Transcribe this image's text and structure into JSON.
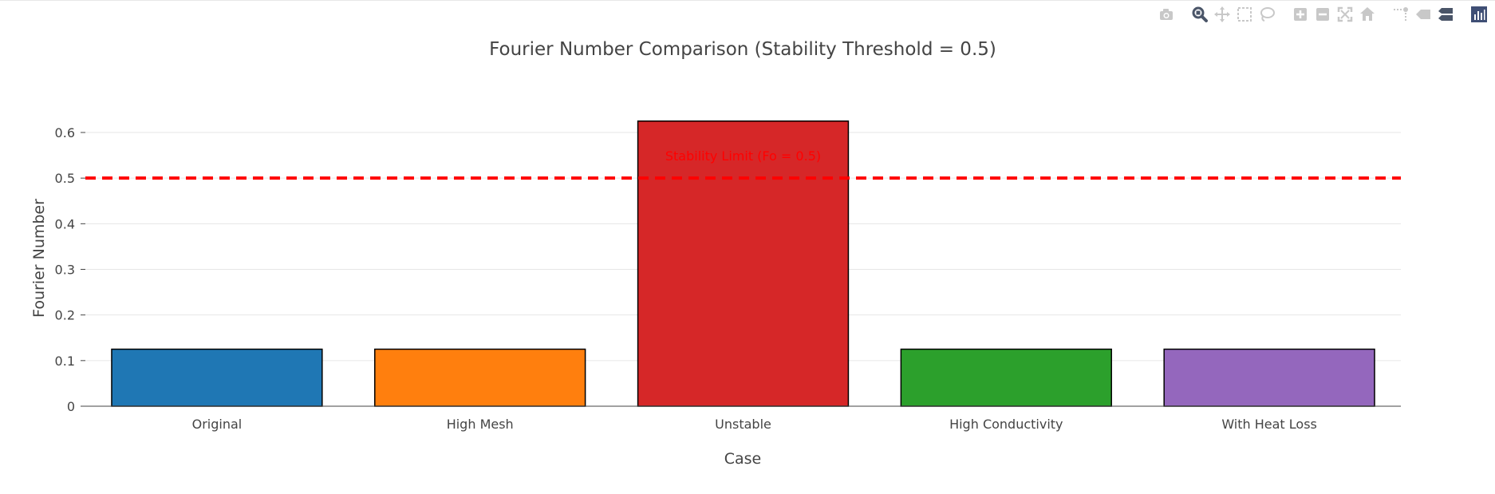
{
  "modebar": {
    "buttons": [
      {
        "name": "camera-icon",
        "group": 0
      },
      {
        "name": "zoom-icon",
        "group": 1,
        "active": true
      },
      {
        "name": "pan-icon",
        "group": 1
      },
      {
        "name": "box-select-icon",
        "group": 1
      },
      {
        "name": "lasso-select-icon",
        "group": 1
      },
      {
        "name": "zoom-in-icon",
        "group": 2
      },
      {
        "name": "zoom-out-icon",
        "group": 2
      },
      {
        "name": "autoscale-icon",
        "group": 2
      },
      {
        "name": "reset-axes-icon",
        "group": 2
      },
      {
        "name": "spike-lines-icon",
        "group": 3
      },
      {
        "name": "hover-closest-icon",
        "group": 3
      },
      {
        "name": "hover-compare-icon",
        "group": 3
      },
      {
        "name": "plotly-logo-icon",
        "group": 4
      }
    ]
  },
  "chart_data": {
    "type": "bar",
    "title": "Fourier Number Comparison (Stability Threshold = 0.5)",
    "xlabel": "Case",
    "ylabel": "Fourier Number",
    "categories": [
      "Original",
      "High Mesh",
      "Unstable",
      "High Conductivity",
      "With Heat Loss"
    ],
    "values": [
      0.125,
      0.125,
      0.625,
      0.125,
      0.125
    ],
    "colors": [
      "#1f77b4",
      "#ff7f0e",
      "#d62728",
      "#2ca02c",
      "#9467bd"
    ],
    "bar_outline_color": "#000000",
    "ylim": [
      0,
      0.635
    ],
    "yticks": [
      0,
      0.1,
      0.2,
      0.3,
      0.4,
      0.5,
      0.6
    ],
    "ytick_labels": [
      "0",
      "0.1",
      "0.2",
      "0.3",
      "0.4",
      "0.5",
      "0.6"
    ],
    "grid": true,
    "threshold": {
      "value": 0.5,
      "color": "#ff0000",
      "style": "dashed",
      "label": "Stability Limit (Fo = 0.5)"
    }
  }
}
